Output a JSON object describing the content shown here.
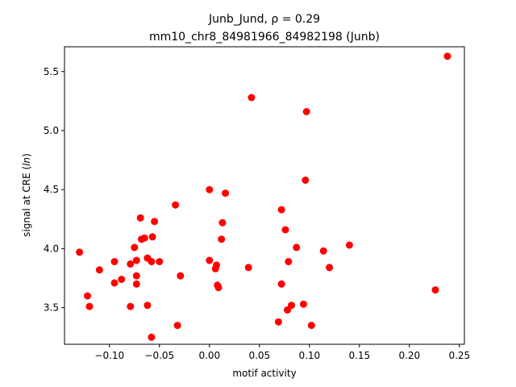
{
  "chart_data": {
    "type": "scatter",
    "title_line1": "Junb_Jund, ρ = 0.29",
    "title_line2": "mm10_chr8_84981966_84982198 (Junb)",
    "xlabel": "motif activity",
    "ylabel": "signal at CRE (ln)",
    "xlim": [
      -0.145,
      0.255
    ],
    "ylim": [
      3.19,
      5.71
    ],
    "x_ticks": [
      -0.1,
      -0.05,
      0.0,
      0.05,
      0.1,
      0.15,
      0.2,
      0.25
    ],
    "x_tick_labels": [
      "−0.10",
      "−0.05",
      "0.00",
      "0.05",
      "0.10",
      "0.15",
      "0.20",
      "0.25"
    ],
    "y_ticks": [
      3.5,
      4.0,
      4.5,
      5.0,
      5.5
    ],
    "y_tick_labels": [
      "3.5",
      "4.0",
      "4.5",
      "5.0",
      "5.5"
    ],
    "grid": false,
    "legend": "none",
    "marker_color": "#ff0000",
    "points": [
      {
        "x": -0.13,
        "y": 3.97
      },
      {
        "x": -0.122,
        "y": 3.6
      },
      {
        "x": -0.12,
        "y": 3.51
      },
      {
        "x": -0.11,
        "y": 3.82
      },
      {
        "x": -0.095,
        "y": 3.89
      },
      {
        "x": -0.095,
        "y": 3.71
      },
      {
        "x": -0.088,
        "y": 3.74
      },
      {
        "x": -0.079,
        "y": 3.87
      },
      {
        "x": -0.079,
        "y": 3.51
      },
      {
        "x": -0.075,
        "y": 4.01
      },
      {
        "x": -0.073,
        "y": 3.9
      },
      {
        "x": -0.073,
        "y": 3.77
      },
      {
        "x": -0.073,
        "y": 3.7
      },
      {
        "x": -0.069,
        "y": 4.26
      },
      {
        "x": -0.068,
        "y": 4.08
      },
      {
        "x": -0.065,
        "y": 4.09
      },
      {
        "x": -0.062,
        "y": 3.92
      },
      {
        "x": -0.062,
        "y": 3.52
      },
      {
        "x": -0.058,
        "y": 3.89
      },
      {
        "x": -0.057,
        "y": 4.1
      },
      {
        "x": -0.058,
        "y": 3.25
      },
      {
        "x": -0.055,
        "y": 4.23
      },
      {
        "x": -0.05,
        "y": 3.89
      },
      {
        "x": -0.034,
        "y": 4.37
      },
      {
        "x": -0.032,
        "y": 3.35
      },
      {
        "x": -0.029,
        "y": 3.77
      },
      {
        "x": 0.0,
        "y": 4.5
      },
      {
        "x": 0.0,
        "y": 3.9
      },
      {
        "x": 0.006,
        "y": 3.83
      },
      {
        "x": 0.007,
        "y": 3.86
      },
      {
        "x": 0.008,
        "y": 3.69
      },
      {
        "x": 0.009,
        "y": 3.67
      },
      {
        "x": 0.012,
        "y": 4.08
      },
      {
        "x": 0.013,
        "y": 4.22
      },
      {
        "x": 0.016,
        "y": 4.47
      },
      {
        "x": 0.039,
        "y": 3.84
      },
      {
        "x": 0.042,
        "y": 5.28
      },
      {
        "x": 0.069,
        "y": 3.38
      },
      {
        "x": 0.072,
        "y": 4.33
      },
      {
        "x": 0.072,
        "y": 3.7
      },
      {
        "x": 0.076,
        "y": 4.16
      },
      {
        "x": 0.078,
        "y": 3.48
      },
      {
        "x": 0.079,
        "y": 3.89
      },
      {
        "x": 0.082,
        "y": 3.52
      },
      {
        "x": 0.087,
        "y": 4.01
      },
      {
        "x": 0.094,
        "y": 3.53
      },
      {
        "x": 0.096,
        "y": 4.58
      },
      {
        "x": 0.097,
        "y": 5.16
      },
      {
        "x": 0.102,
        "y": 3.35
      },
      {
        "x": 0.114,
        "y": 3.98
      },
      {
        "x": 0.12,
        "y": 3.84
      },
      {
        "x": 0.14,
        "y": 4.03
      },
      {
        "x": 0.226,
        "y": 3.65
      },
      {
        "x": 0.238,
        "y": 5.63
      }
    ]
  }
}
